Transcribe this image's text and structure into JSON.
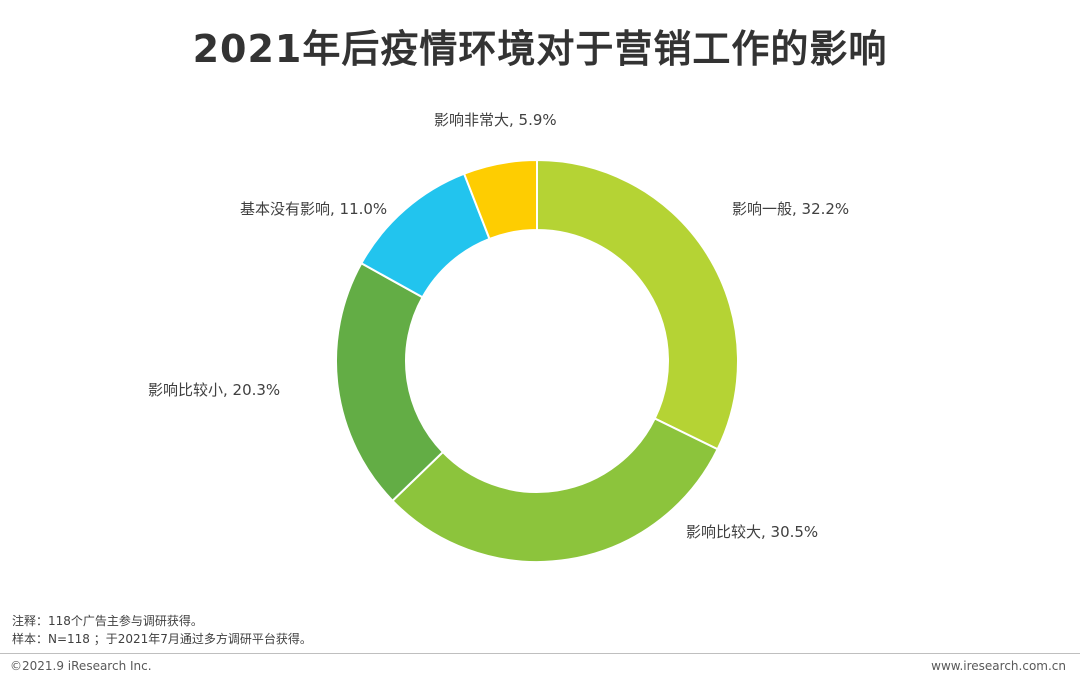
{
  "chart_data": {
    "type": "pie",
    "title": "2021年后疫情环境对于营销工作的影响",
    "donut": true,
    "slices": [
      {
        "label": "影响一般",
        "value": 32.2,
        "display": "影响一般, 32.2%",
        "color": "#b5d334"
      },
      {
        "label": "影响比较大",
        "value": 30.5,
        "display": "影响比较大, 30.5%",
        "color": "#8cc43c"
      },
      {
        "label": "影响比较小",
        "value": 20.3,
        "display": "影响比较小, 20.3%",
        "color": "#63ad45"
      },
      {
        "label": "基本没有影响",
        "value": 11.0,
        "display": "基本没有影响, 11.0%",
        "color": "#22c4ee"
      },
      {
        "label": "影响非常大",
        "value": 5.9,
        "display": "影响非常大, 5.9%",
        "color": "#fecd01"
      }
    ]
  },
  "notes": {
    "note": "注释：118个广告主参与调研获得。",
    "sample": "样本：N=118 ；于2021年7月通过多方调研平台获得。"
  },
  "footer": {
    "copyright": "©2021.9 iResearch Inc.",
    "website": "www.iresearch.com.cn"
  }
}
